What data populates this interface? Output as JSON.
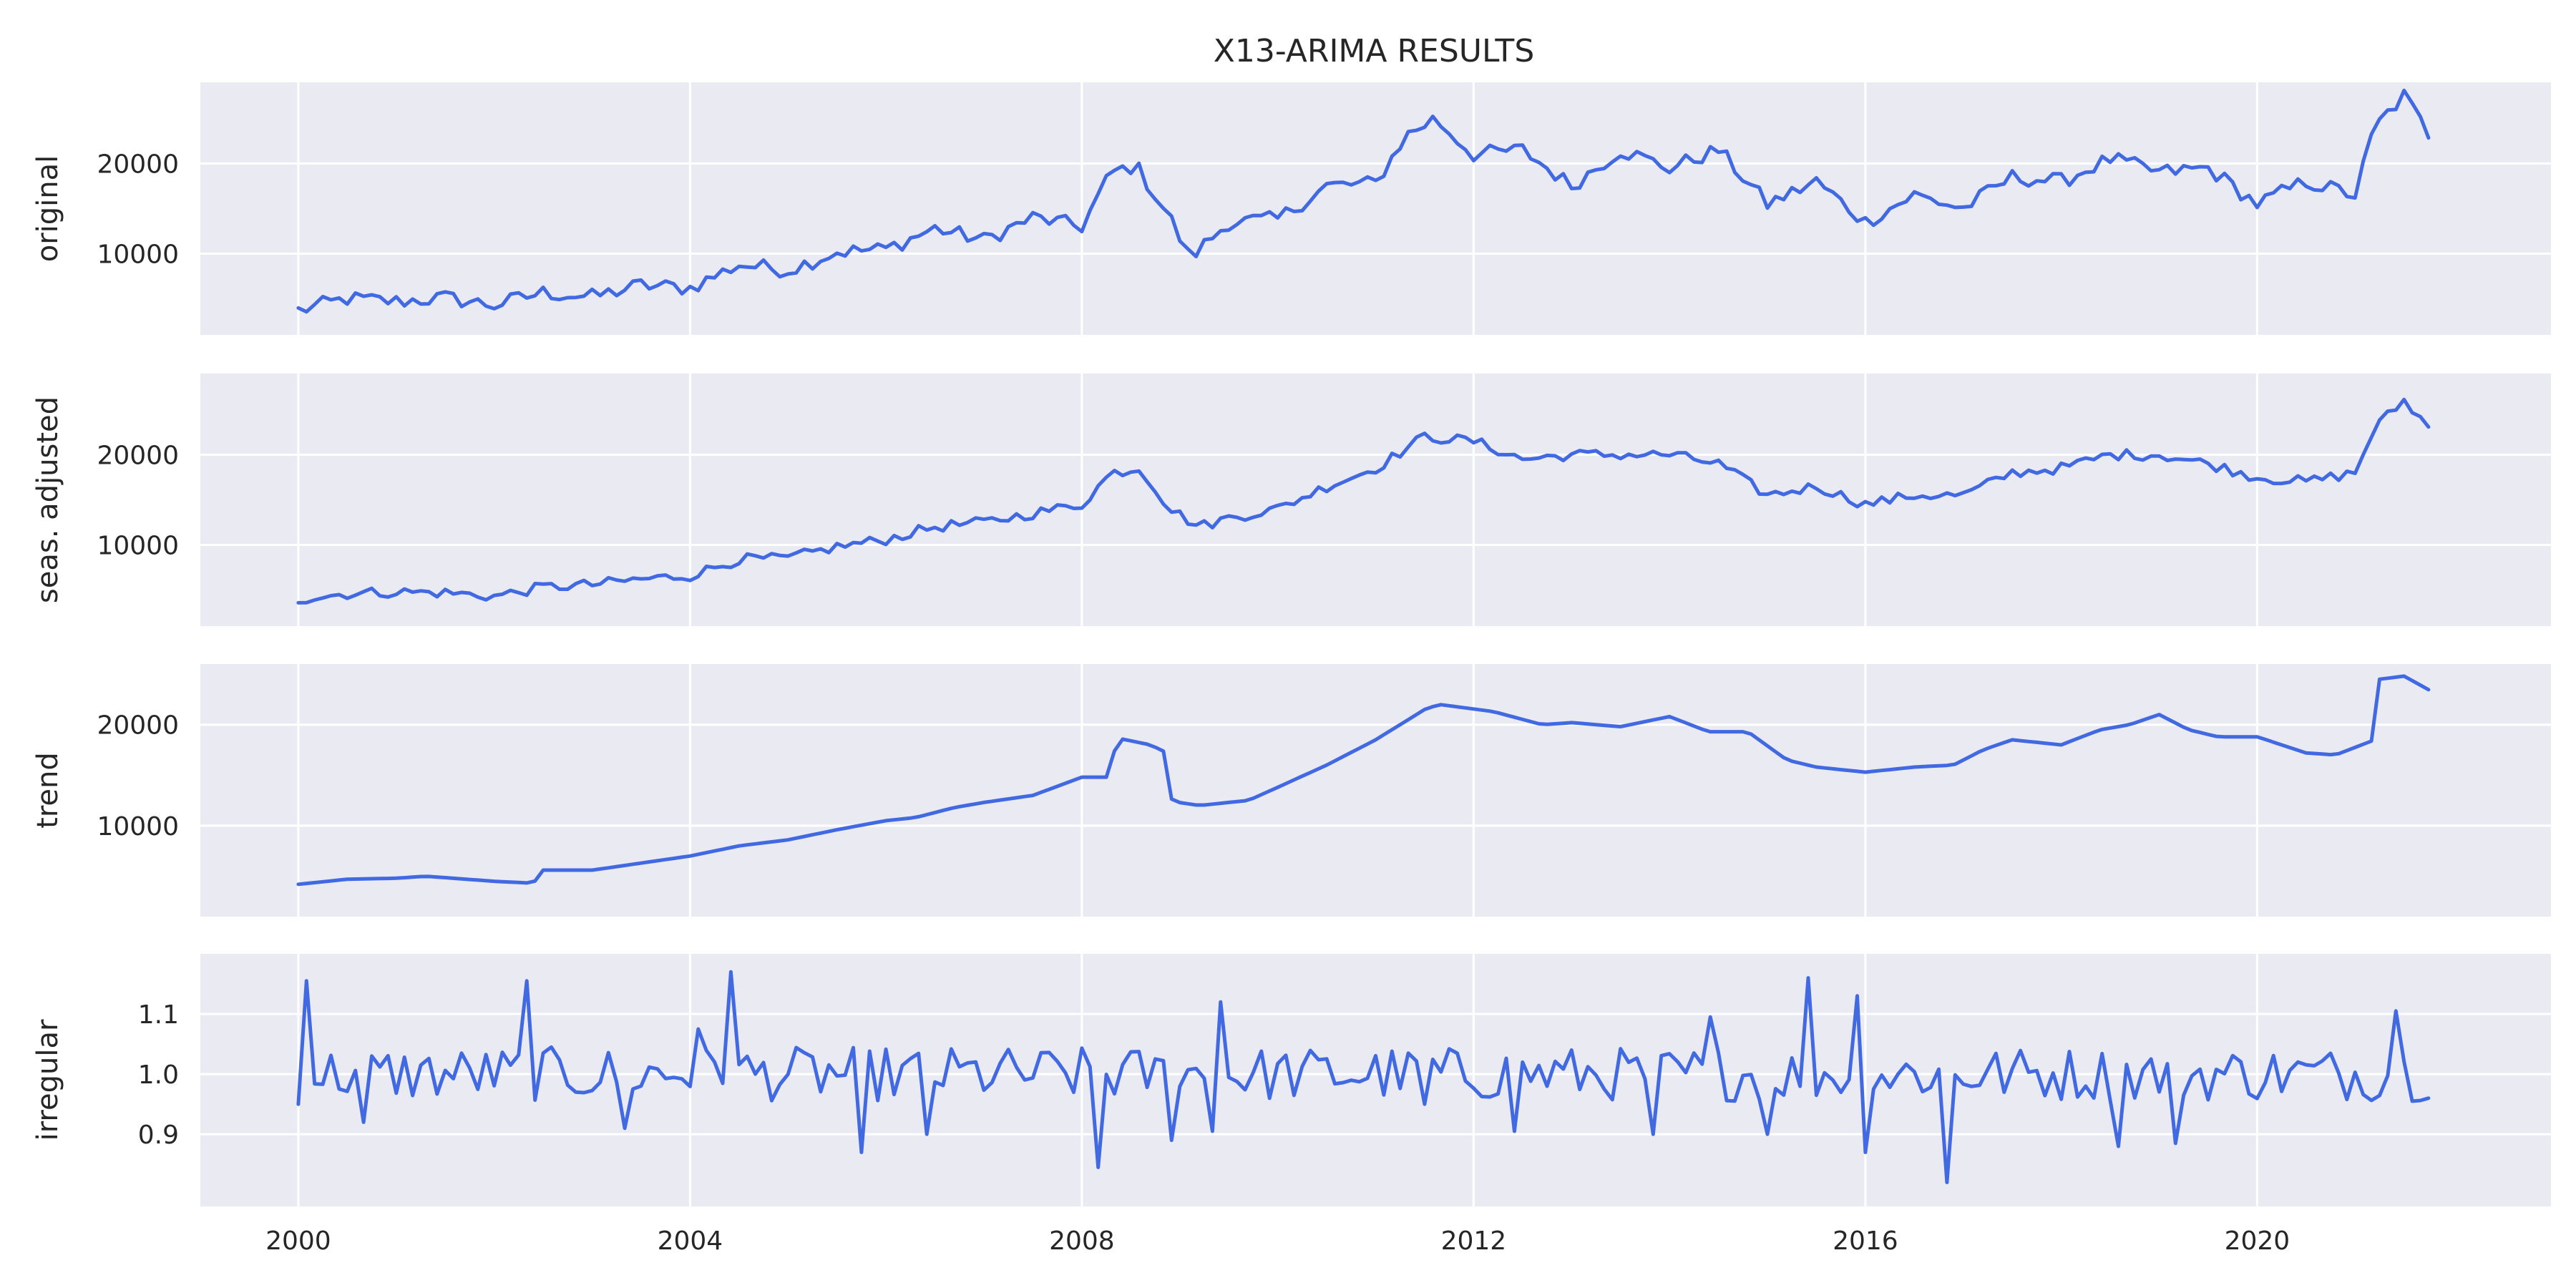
{
  "chart_data": {
    "type": "line",
    "title": "X13-ARIMA RESULTS",
    "xlabel": "",
    "x_start": "2000-01",
    "x_end": "2021-10",
    "x_frequency": "monthly",
    "xlim": [
      1999,
      2023
    ],
    "x_ticks": [
      "2000",
      "2004",
      "2008",
      "2012",
      "2016",
      "2020"
    ],
    "grid": true,
    "panels": [
      {
        "ylabel": "original",
        "ylim": [
          1000,
          29000
        ],
        "y_ticks": [
          "10000",
          "20000"
        ],
        "anchors": [
          [
            2000.0,
            3700
          ],
          [
            2000.5,
            5000
          ],
          [
            2001.0,
            4700
          ],
          [
            2001.5,
            5100
          ],
          [
            2002.0,
            4300
          ],
          [
            2002.5,
            5700
          ],
          [
            2003.0,
            5200
          ],
          [
            2003.5,
            6500
          ],
          [
            2004.0,
            6200
          ],
          [
            2004.5,
            8800
          ],
          [
            2005.0,
            8200
          ],
          [
            2005.5,
            10200
          ],
          [
            2006.0,
            10500
          ],
          [
            2006.5,
            12800
          ],
          [
            2007.0,
            11500
          ],
          [
            2007.5,
            14000
          ],
          [
            2008.0,
            13000
          ],
          [
            2008.3,
            19000
          ],
          [
            2008.55,
            19800
          ],
          [
            2008.9,
            14000
          ],
          [
            2009.1,
            9500
          ],
          [
            2009.5,
            13500
          ],
          [
            2010.0,
            13800
          ],
          [
            2010.5,
            17500
          ],
          [
            2011.0,
            17800
          ],
          [
            2011.3,
            23000
          ],
          [
            2011.6,
            25000
          ],
          [
            2012.0,
            21000
          ],
          [
            2012.5,
            21500
          ],
          [
            2013.0,
            17500
          ],
          [
            2013.5,
            21500
          ],
          [
            2014.0,
            19500
          ],
          [
            2014.5,
            21500
          ],
          [
            2015.0,
            15500
          ],
          [
            2015.5,
            18000
          ],
          [
            2016.0,
            13500
          ],
          [
            2016.5,
            16500
          ],
          [
            2017.0,
            15000
          ],
          [
            2017.5,
            18500
          ],
          [
            2018.0,
            18000
          ],
          [
            2018.5,
            20500
          ],
          [
            2019.0,
            19000
          ],
          [
            2019.5,
            19500
          ],
          [
            2020.0,
            15500
          ],
          [
            2020.5,
            18000
          ],
          [
            2021.0,
            16500
          ],
          [
            2021.2,
            24000
          ],
          [
            2021.5,
            27500
          ],
          [
            2021.8,
            22500
          ]
        ],
        "noise": 900
      },
      {
        "ylabel": "seas. adjusted",
        "ylim": [
          1000,
          29000
        ],
        "y_ticks": [
          "10000",
          "20000"
        ],
        "anchors": [
          [
            2000.0,
            4000
          ],
          [
            2000.5,
            4600
          ],
          [
            2001.0,
            4800
          ],
          [
            2001.5,
            4700
          ],
          [
            2002.0,
            4300
          ],
          [
            2002.5,
            5300
          ],
          [
            2003.0,
            5600
          ],
          [
            2003.5,
            6200
          ],
          [
            2004.0,
            6600
          ],
          [
            2004.5,
            8400
          ],
          [
            2005.0,
            8500
          ],
          [
            2005.5,
            9800
          ],
          [
            2006.0,
            10600
          ],
          [
            2006.5,
            12000
          ],
          [
            2007.0,
            12500
          ],
          [
            2007.5,
            13500
          ],
          [
            2008.0,
            14500
          ],
          [
            2008.3,
            18000
          ],
          [
            2008.6,
            18500
          ],
          [
            2008.9,
            14000
          ],
          [
            2009.2,
            12000
          ],
          [
            2009.5,
            13000
          ],
          [
            2010.0,
            14000
          ],
          [
            2010.5,
            16500
          ],
          [
            2011.0,
            18500
          ],
          [
            2011.5,
            22000
          ],
          [
            2012.0,
            21500
          ],
          [
            2012.5,
            19500
          ],
          [
            2013.0,
            20000
          ],
          [
            2013.5,
            20000
          ],
          [
            2014.0,
            20000
          ],
          [
            2014.5,
            19000
          ],
          [
            2015.0,
            15500
          ],
          [
            2015.5,
            16500
          ],
          [
            2016.0,
            14500
          ],
          [
            2016.5,
            15500
          ],
          [
            2017.0,
            15500
          ],
          [
            2017.5,
            18000
          ],
          [
            2018.0,
            18500
          ],
          [
            2018.5,
            20000
          ],
          [
            2019.0,
            20000
          ],
          [
            2019.5,
            19000
          ],
          [
            2020.0,
            17500
          ],
          [
            2020.5,
            17000
          ],
          [
            2021.0,
            18000
          ],
          [
            2021.2,
            23000
          ],
          [
            2021.5,
            26000
          ],
          [
            2021.8,
            22500
          ]
        ],
        "noise": 600
      },
      {
        "ylabel": "trend",
        "ylim": [
          1000,
          26000
        ],
        "y_ticks": [
          "10000",
          "20000"
        ],
        "anchors": [
          [
            2000.0,
            4200
          ],
          [
            2000.5,
            4700
          ],
          [
            2001.0,
            4800
          ],
          [
            2001.3,
            5000
          ],
          [
            2002.0,
            4500
          ],
          [
            2002.4,
            4300
          ],
          [
            2002.5,
            5600
          ],
          [
            2003.0,
            5600
          ],
          [
            2004.0,
            7000
          ],
          [
            2004.5,
            8000
          ],
          [
            2005.0,
            8600
          ],
          [
            2005.5,
            9600
          ],
          [
            2006.0,
            10500
          ],
          [
            2006.3,
            10800
          ],
          [
            2006.7,
            11800
          ],
          [
            2007.0,
            12300
          ],
          [
            2007.5,
            13000
          ],
          [
            2008.0,
            14800
          ],
          [
            2008.3,
            14800
          ],
          [
            2008.35,
            18700
          ],
          [
            2008.7,
            18000
          ],
          [
            2008.85,
            17300
          ],
          [
            2008.92,
            12400
          ],
          [
            2009.2,
            12000
          ],
          [
            2009.7,
            12500
          ],
          [
            2010.0,
            13800
          ],
          [
            2010.5,
            16000
          ],
          [
            2011.0,
            18500
          ],
          [
            2011.5,
            21500
          ],
          [
            2011.65,
            22000
          ],
          [
            2012.2,
            21300
          ],
          [
            2012.7,
            20000
          ],
          [
            2013.0,
            20200
          ],
          [
            2013.5,
            19800
          ],
          [
            2014.0,
            20800
          ],
          [
            2014.4,
            19300
          ],
          [
            2014.8,
            19300
          ],
          [
            2015.2,
            16500
          ],
          [
            2015.5,
            15800
          ],
          [
            2016.0,
            15300
          ],
          [
            2016.5,
            15800
          ],
          [
            2016.9,
            16000
          ],
          [
            2017.2,
            17500
          ],
          [
            2017.5,
            18500
          ],
          [
            2018.0,
            18000
          ],
          [
            2018.4,
            19500
          ],
          [
            2018.7,
            20000
          ],
          [
            2019.0,
            21000
          ],
          [
            2019.3,
            19500
          ],
          [
            2019.6,
            18800
          ],
          [
            2020.0,
            18800
          ],
          [
            2020.5,
            17200
          ],
          [
            2020.8,
            17000
          ],
          [
            2021.2,
            18500
          ],
          [
            2021.25,
            24500
          ],
          [
            2021.5,
            24800
          ],
          [
            2021.8,
            23200
          ]
        ],
        "noise": 0
      },
      {
        "ylabel": "irregular",
        "ylim": [
          0.78,
          1.2
        ],
        "y_ticks": [
          "0.9",
          "1.0",
          "1.1"
        ],
        "base": 1.0,
        "noise": 0.045,
        "spikes": [
          [
            2000.0,
            0.95
          ],
          [
            2000.08,
            1.155
          ],
          [
            2000.7,
            0.92
          ],
          [
            2002.3,
            1.155
          ],
          [
            2003.3,
            0.91
          ],
          [
            2004.1,
            1.075
          ],
          [
            2004.4,
            1.17
          ],
          [
            2005.75,
            0.87
          ],
          [
            2006.4,
            0.9
          ],
          [
            2008.2,
            0.845
          ],
          [
            2008.9,
            0.89
          ],
          [
            2009.35,
            0.905
          ],
          [
            2009.42,
            1.12
          ],
          [
            2011.5,
            0.95
          ],
          [
            2012.4,
            0.905
          ],
          [
            2013.8,
            0.9
          ],
          [
            2014.4,
            1.095
          ],
          [
            2015.0,
            0.9
          ],
          [
            2015.45,
            1.16
          ],
          [
            2015.95,
            1.13
          ],
          [
            2016.0,
            0.87
          ],
          [
            2016.8,
            0.82
          ],
          [
            2018.6,
            0.88
          ],
          [
            2019.2,
            0.885
          ],
          [
            2021.4,
            1.105
          ],
          [
            2021.8,
            0.96
          ]
        ]
      }
    ]
  }
}
